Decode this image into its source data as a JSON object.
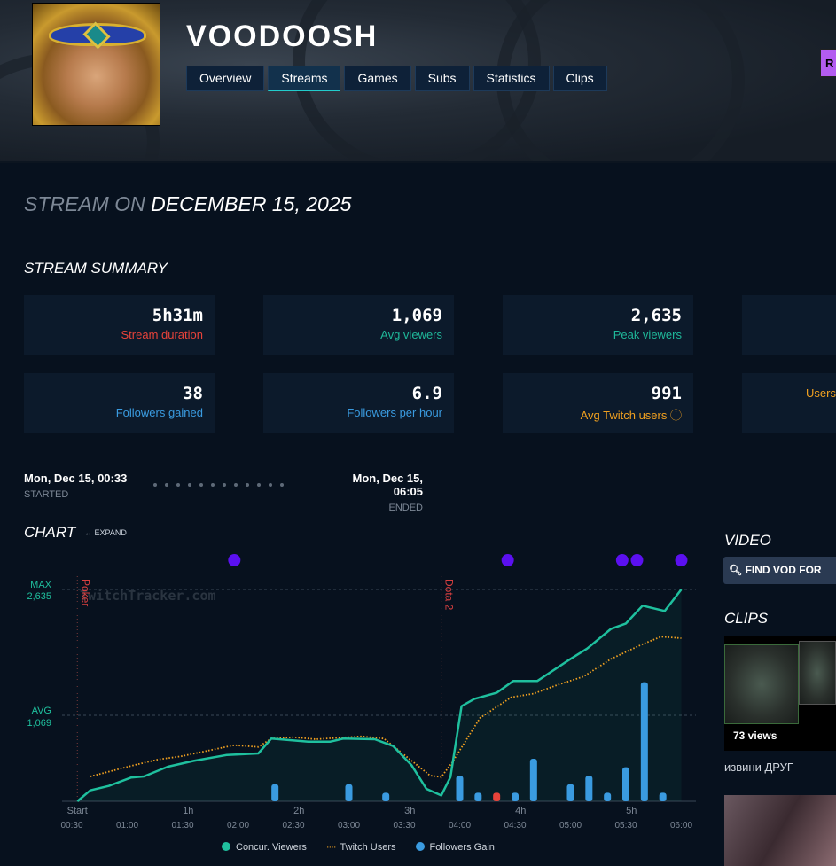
{
  "header": {
    "channel": "VOODOOSH",
    "tabs": [
      "Overview",
      "Streams",
      "Games",
      "Subs",
      "Statistics",
      "Clips"
    ],
    "active_tab": "Streams",
    "right_button": "R"
  },
  "page": {
    "prefix": "STREAM ON",
    "date": "DECEMBER 15, 2025"
  },
  "summary": {
    "title": "STREAM SUMMARY",
    "cards": [
      {
        "value": "5h31m",
        "label": "Stream duration",
        "color": "#e8433a"
      },
      {
        "value": "1,069",
        "label": "Avg viewers",
        "color": "#1fb89a"
      },
      {
        "value": "2,635",
        "label": "Peak viewers",
        "color": "#1fb89a"
      },
      {
        "value": "38",
        "label": "Followers gained",
        "color": "#3a9be0"
      },
      {
        "value": "6.9",
        "label": "Followers per hour",
        "color": "#3a9be0"
      },
      {
        "value": "991",
        "label": "Avg Twitch users",
        "color": "#f0a020"
      },
      {
        "value": "",
        "label": "Users",
        "color": "#f0a020"
      }
    ]
  },
  "timeline": {
    "started": "Mon, Dec 15, 00:33",
    "started_label": "STARTED",
    "ended": "Mon, Dec 15, 06:05",
    "ended_label": "ENDED"
  },
  "chart_section": {
    "title": "CHART",
    "expand": "↔ EXPAND"
  },
  "chart_data": {
    "type": "line",
    "watermark": "TwitchTracker.com",
    "x_unit": "minutes since 00:30",
    "xlim": [
      0,
      330
    ],
    "ylim": [
      0,
      2635
    ],
    "max_label": "MAX",
    "max_value": "2,635",
    "max": 2635,
    "avg_label": "AVG",
    "avg_value": "1,069",
    "avg": 1069,
    "x_ticks_top": [
      "Start",
      "1h",
      "2h",
      "3h",
      "4h",
      "5h"
    ],
    "x_ticks_top_min": [
      3,
      63,
      123,
      183,
      243,
      303
    ],
    "x_ticks": [
      "00:30",
      "01:00",
      "01:30",
      "02:00",
      "02:30",
      "03:00",
      "03:30",
      "04:00",
      "04:30",
      "05:00",
      "05:30",
      "06:00"
    ],
    "games": [
      {
        "name": "Poker",
        "min": 3
      },
      {
        "name": "Dota 2",
        "min": 200
      }
    ],
    "events_min": [
      88,
      236,
      298,
      306,
      330
    ],
    "series": [
      {
        "name": "Concur. Viewers",
        "color": "#1fc09e",
        "points": [
          [
            3,
            0
          ],
          [
            10,
            136
          ],
          [
            20,
            191
          ],
          [
            32,
            294
          ],
          [
            39,
            309
          ],
          [
            52,
            430
          ],
          [
            66,
            503
          ],
          [
            84,
            577
          ],
          [
            101,
            595
          ],
          [
            108,
            779
          ],
          [
            128,
            742
          ],
          [
            140,
            742
          ],
          [
            147,
            779
          ],
          [
            164,
            772
          ],
          [
            174,
            687
          ],
          [
            184,
            448
          ],
          [
            192,
            154
          ],
          [
            200,
            73
          ],
          [
            205,
            301
          ],
          [
            211,
            1183
          ],
          [
            218,
            1275
          ],
          [
            230,
            1349
          ],
          [
            239,
            1496
          ],
          [
            252,
            1496
          ],
          [
            270,
            1771
          ],
          [
            279,
            1900
          ],
          [
            292,
            2146
          ],
          [
            300,
            2212
          ],
          [
            309,
            2433
          ],
          [
            321,
            2367
          ],
          [
            330,
            2635
          ]
        ]
      },
      {
        "name": "Twitch Users",
        "color": "#f0a020",
        "points": [
          [
            10,
            309
          ],
          [
            35,
            456
          ],
          [
            47,
            522
          ],
          [
            59,
            559
          ],
          [
            88,
            698
          ],
          [
            101,
            676
          ],
          [
            108,
            779
          ],
          [
            120,
            797
          ],
          [
            132,
            772
          ],
          [
            157,
            808
          ],
          [
            169,
            779
          ],
          [
            181,
            559
          ],
          [
            194,
            320
          ],
          [
            200,
            301
          ],
          [
            206,
            485
          ],
          [
            221,
            1036
          ],
          [
            238,
            1294
          ],
          [
            250,
            1338
          ],
          [
            263,
            1448
          ],
          [
            277,
            1551
          ],
          [
            292,
            1771
          ],
          [
            309,
            1955
          ],
          [
            319,
            2047
          ],
          [
            330,
            2029
          ]
        ]
      },
      {
        "name": "Followers Gain",
        "color": "#3a9be0",
        "negative_color": "#e8433a",
        "bars": [
          [
            110,
            2
          ],
          [
            150,
            2
          ],
          [
            170,
            1
          ],
          [
            210,
            3
          ],
          [
            220,
            1
          ],
          [
            230,
            -1
          ],
          [
            240,
            1
          ],
          [
            250,
            5
          ],
          [
            270,
            2
          ],
          [
            280,
            3
          ],
          [
            290,
            1
          ],
          [
            300,
            4
          ],
          [
            310,
            14
          ],
          [
            320,
            1
          ]
        ]
      }
    ]
  },
  "video": {
    "title": "VIDEO",
    "button": "FIND VOD FOR"
  },
  "clips": {
    "title": "CLIPS",
    "items": [
      {
        "views": "73 views",
        "title": "извини ДРУГ"
      }
    ]
  }
}
